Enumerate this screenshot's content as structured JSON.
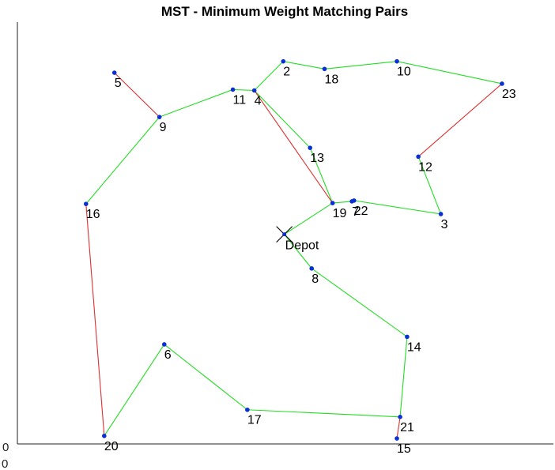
{
  "chart_data": {
    "type": "scatter",
    "title": "MST - Minimum Weight Matching Pairs",
    "xlabel": "",
    "ylabel": "",
    "xlim": [
      0,
      100
    ],
    "ylim": [
      0,
      100
    ],
    "x_ticks": [
      "0"
    ],
    "y_ticks": [
      "0"
    ],
    "grid": false,
    "depot": {
      "label": "Depot",
      "x": 49.8,
      "y": 49.7,
      "marker": "x"
    },
    "nodes": [
      {
        "id": "2",
        "x": 49.6,
        "y": 90.7
      },
      {
        "id": "3",
        "x": 79.0,
        "y": 54.5
      },
      {
        "id": "4",
        "x": 44.2,
        "y": 83.8
      },
      {
        "id": "5",
        "x": 18.1,
        "y": 88.0
      },
      {
        "id": "6",
        "x": 27.4,
        "y": 23.6
      },
      {
        "id": "7",
        "x": 62.4,
        "y": 57.5
      },
      {
        "id": "8",
        "x": 54.9,
        "y": 41.6
      },
      {
        "id": "9",
        "x": 26.5,
        "y": 77.5
      },
      {
        "id": "10",
        "x": 70.8,
        "y": 90.7
      },
      {
        "id": "11",
        "x": 40.2,
        "y": 84.0
      },
      {
        "id": "12",
        "x": 74.8,
        "y": 68.1
      },
      {
        "id": "13",
        "x": 54.6,
        "y": 70.2
      },
      {
        "id": "14",
        "x": 72.7,
        "y": 25.4
      },
      {
        "id": "15",
        "x": 70.8,
        "y": 1.3
      },
      {
        "id": "16",
        "x": 12.8,
        "y": 56.9
      },
      {
        "id": "17",
        "x": 42.9,
        "y": 8.1
      },
      {
        "id": "18",
        "x": 57.3,
        "y": 88.9
      },
      {
        "id": "19",
        "x": 58.8,
        "y": 57.1
      },
      {
        "id": "20",
        "x": 16.2,
        "y": 1.9
      },
      {
        "id": "21",
        "x": 71.4,
        "y": 6.4
      },
      {
        "id": "22",
        "x": 62.8,
        "y": 57.7
      },
      {
        "id": "23",
        "x": 90.4,
        "y": 85.4
      }
    ],
    "series": [
      {
        "color": "#22dd22",
        "edges": [
          [
            "2",
            "18"
          ],
          [
            "18",
            "10"
          ],
          [
            "10",
            "23"
          ],
          [
            "2",
            "4"
          ],
          [
            "4",
            "11"
          ],
          [
            "11",
            "9"
          ],
          [
            "9",
            "16"
          ],
          [
            "4",
            "13"
          ],
          [
            "13",
            "19"
          ],
          [
            "19",
            "7"
          ],
          [
            "7",
            "22"
          ],
          [
            "22",
            "3"
          ],
          [
            "3",
            "12"
          ],
          [
            "19",
            "Depot"
          ],
          [
            "Depot",
            "8"
          ],
          [
            "8",
            "14"
          ],
          [
            "14",
            "21"
          ],
          [
            "21",
            "17"
          ],
          [
            "17",
            "6"
          ],
          [
            "6",
            "20"
          ]
        ]
      },
      {
        "color": "#e03030",
        "edges": [
          [
            "5",
            "9"
          ],
          [
            "4",
            "19"
          ],
          [
            "12",
            "23"
          ],
          [
            "16",
            "20"
          ],
          [
            "21",
            "15"
          ]
        ]
      }
    ]
  },
  "colors": {
    "node": "#0a2fd6",
    "axis": "#222222"
  }
}
